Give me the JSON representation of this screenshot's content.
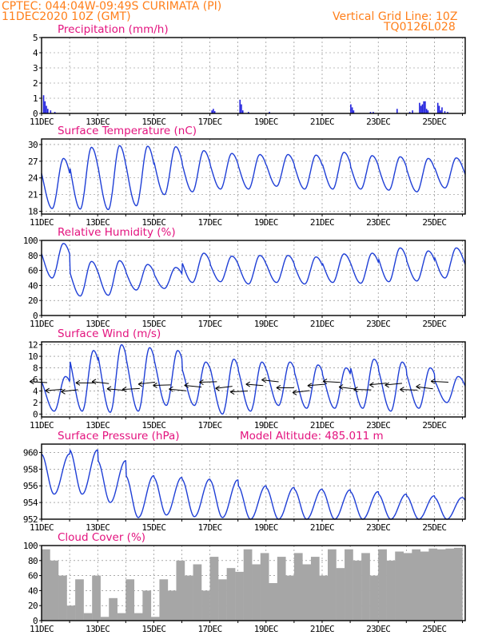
{
  "header": {
    "line1": "CPTEC:   044:04W-09:49S   CURIMATA (PI)",
    "line2": "11DEC2020 10Z (GMT)",
    "grid_note": "Vertical Grid Line: 10Z",
    "run_code": "TQ0126L028"
  },
  "colors": {
    "series": "#1f3fd6",
    "bars": "#2222dd",
    "cloud": "#a6a6a6",
    "title": "#e3127e",
    "header": "#ff7f1a"
  },
  "chart_data": [
    {
      "id": "precipitation",
      "type": "bar",
      "title": "Precipitation (mm/h)",
      "ylim": [
        0,
        5
      ],
      "yticks": [
        0,
        1,
        2,
        3,
        4,
        5
      ],
      "x_start_day": 11,
      "x_end_day": 26.1,
      "xtick_labels": [
        "11DEC",
        "13DEC",
        "15DEC",
        "17DEC",
        "19DEC",
        "21DEC",
        "23DEC",
        "25DEC"
      ],
      "x": [
        11.05,
        11.1,
        11.15,
        11.2,
        11.3,
        11.45,
        17.05,
        17.1,
        17.15,
        18.05,
        18.1,
        18.15,
        18.35,
        19.1,
        22.0,
        22.05,
        22.1,
        22.7,
        22.8,
        23.65,
        24.1,
        24.2,
        24.45,
        24.5,
        24.55,
        24.6,
        24.65,
        24.7,
        24.75,
        25.1,
        25.15,
        25.2,
        25.25,
        25.35,
        25.45
      ],
      "values": [
        1.2,
        0.8,
        0.5,
        0.3,
        0.2,
        0.1,
        0.2,
        0.3,
        0.15,
        0.9,
        0.6,
        0.2,
        0.1,
        0.1,
        0.6,
        0.4,
        0.2,
        0.1,
        0.1,
        0.3,
        0.1,
        0.2,
        0.7,
        0.5,
        0.6,
        0.8,
        0.8,
        0.3,
        0.2,
        0.7,
        0.5,
        0.2,
        0.4,
        0.15,
        0.1
      ]
    },
    {
      "id": "temperature",
      "type": "line",
      "title": "Surface Temperature (nC)",
      "ylim": [
        17.5,
        31
      ],
      "yticks": [
        18,
        21,
        24,
        27,
        30
      ],
      "x_start_day": 11,
      "x_end_day": 26.1,
      "xtick_labels": [
        "11DEC",
        "13DEC",
        "15DEC",
        "17DEC",
        "19DEC",
        "21DEC",
        "23DEC",
        "25DEC"
      ],
      "daily_min": [
        18.5,
        18.4,
        18.3,
        19.0,
        21.0,
        21.5,
        22.0,
        22.0,
        22.5,
        22.0,
        22.0,
        22.0,
        21.8,
        21.5,
        22.2
      ],
      "daily_max": [
        27.5,
        29.5,
        29.8,
        29.7,
        29.6,
        28.9,
        28.4,
        28.2,
        28.2,
        28.1,
        28.6,
        28.0,
        27.8,
        27.5,
        27.6
      ]
    },
    {
      "id": "humidity",
      "type": "line",
      "title": "Relative Humidity (%)",
      "ylim": [
        0,
        100
      ],
      "yticks": [
        0,
        20,
        40,
        60,
        80,
        100
      ],
      "x_start_day": 11,
      "x_end_day": 26.1,
      "xtick_labels": [
        "11DEC",
        "13DEC",
        "15DEC",
        "17DEC",
        "19DEC",
        "21DEC",
        "23DEC",
        "25DEC"
      ],
      "daily_max": [
        96,
        72,
        73,
        68,
        64,
        83,
        79,
        80,
        80,
        78,
        82,
        83,
        90,
        86,
        90
      ],
      "daily_min": [
        50,
        26,
        27,
        34,
        36,
        44,
        45,
        42,
        44,
        42,
        44,
        43,
        45,
        46,
        50
      ]
    },
    {
      "id": "wind",
      "type": "line",
      "title": "Surface Wind (m/s)",
      "ylim": [
        -0.5,
        12.5
      ],
      "yticks": [
        0,
        2,
        4,
        6,
        8,
        10,
        12
      ],
      "x_start_day": 11,
      "x_end_day": 26.1,
      "xtick_labels": [
        "11DEC",
        "13DEC",
        "15DEC",
        "17DEC",
        "19DEC",
        "21DEC",
        "23DEC",
        "25DEC"
      ],
      "daily_max": [
        6.5,
        11.0,
        12.0,
        11.5,
        11.0,
        9.0,
        9.5,
        9.0,
        9.0,
        8.5,
        8.0,
        9.5,
        9.0,
        8.0,
        6.5
      ],
      "daily_min": [
        0.5,
        0.5,
        0.3,
        0.5,
        1.5,
        1.5,
        0.0,
        0.5,
        1.5,
        1.0,
        1.0,
        1.0,
        0.5,
        1.0,
        2.0
      ]
    },
    {
      "id": "pressure",
      "type": "line",
      "title": "Surface Pressure (hPa)",
      "annotation": "Model Altitude: 485.011 m",
      "ylim": [
        952,
        961
      ],
      "yticks": [
        952,
        954,
        956,
        958,
        960
      ],
      "x_start_day": 11,
      "x_end_day": 26.1,
      "xtick_labels": [
        "11DEC",
        "13DEC",
        "15DEC",
        "17DEC",
        "19DEC",
        "21DEC",
        "23DEC",
        "25DEC"
      ],
      "daily_max": [
        959.8,
        960.3,
        959.0,
        957.2,
        957.0,
        956.8,
        956.7,
        956.0,
        955.8,
        955.6,
        955.5,
        955.3,
        955.0,
        954.8,
        954.6
      ],
      "daily_min": [
        955.0,
        955.0,
        954.0,
        952.2,
        952.5,
        952.3,
        952.2,
        952.0,
        952.0,
        952.0,
        952.0,
        952.0,
        952.0,
        952.0,
        952.0
      ]
    },
    {
      "id": "cloud",
      "type": "area",
      "title": "Cloud Cover (%)",
      "ylim": [
        0,
        100
      ],
      "yticks": [
        0,
        20,
        40,
        60,
        80,
        100
      ],
      "x_start_day": 11,
      "x_end_day": 26.1,
      "xtick_labels": [
        "11DEC",
        "13DEC",
        "15DEC",
        "17DEC",
        "19DEC",
        "21DEC",
        "23DEC",
        "25DEC"
      ],
      "x": [
        11.0,
        11.3,
        11.6,
        11.9,
        12.2,
        12.5,
        12.8,
        13.1,
        13.4,
        13.7,
        14.0,
        14.3,
        14.6,
        14.9,
        15.2,
        15.5,
        15.8,
        16.1,
        16.4,
        16.7,
        17.0,
        17.3,
        17.6,
        17.9,
        18.2,
        18.5,
        18.8,
        19.1,
        19.4,
        19.7,
        20.0,
        20.3,
        20.6,
        20.9,
        21.2,
        21.5,
        21.8,
        22.1,
        22.4,
        22.7,
        23.0,
        23.3,
        23.6,
        23.9,
        24.2,
        24.5,
        24.8,
        25.1,
        25.4,
        25.7,
        26.0
      ],
      "values": [
        95,
        80,
        60,
        20,
        55,
        10,
        60,
        5,
        30,
        10,
        55,
        10,
        40,
        5,
        55,
        40,
        80,
        60,
        75,
        40,
        85,
        55,
        70,
        65,
        95,
        75,
        90,
        50,
        85,
        60,
        90,
        75,
        85,
        60,
        95,
        70,
        95,
        80,
        90,
        60,
        95,
        80,
        92,
        90,
        95,
        92,
        96,
        95,
        96,
        97,
        97
      ]
    }
  ]
}
